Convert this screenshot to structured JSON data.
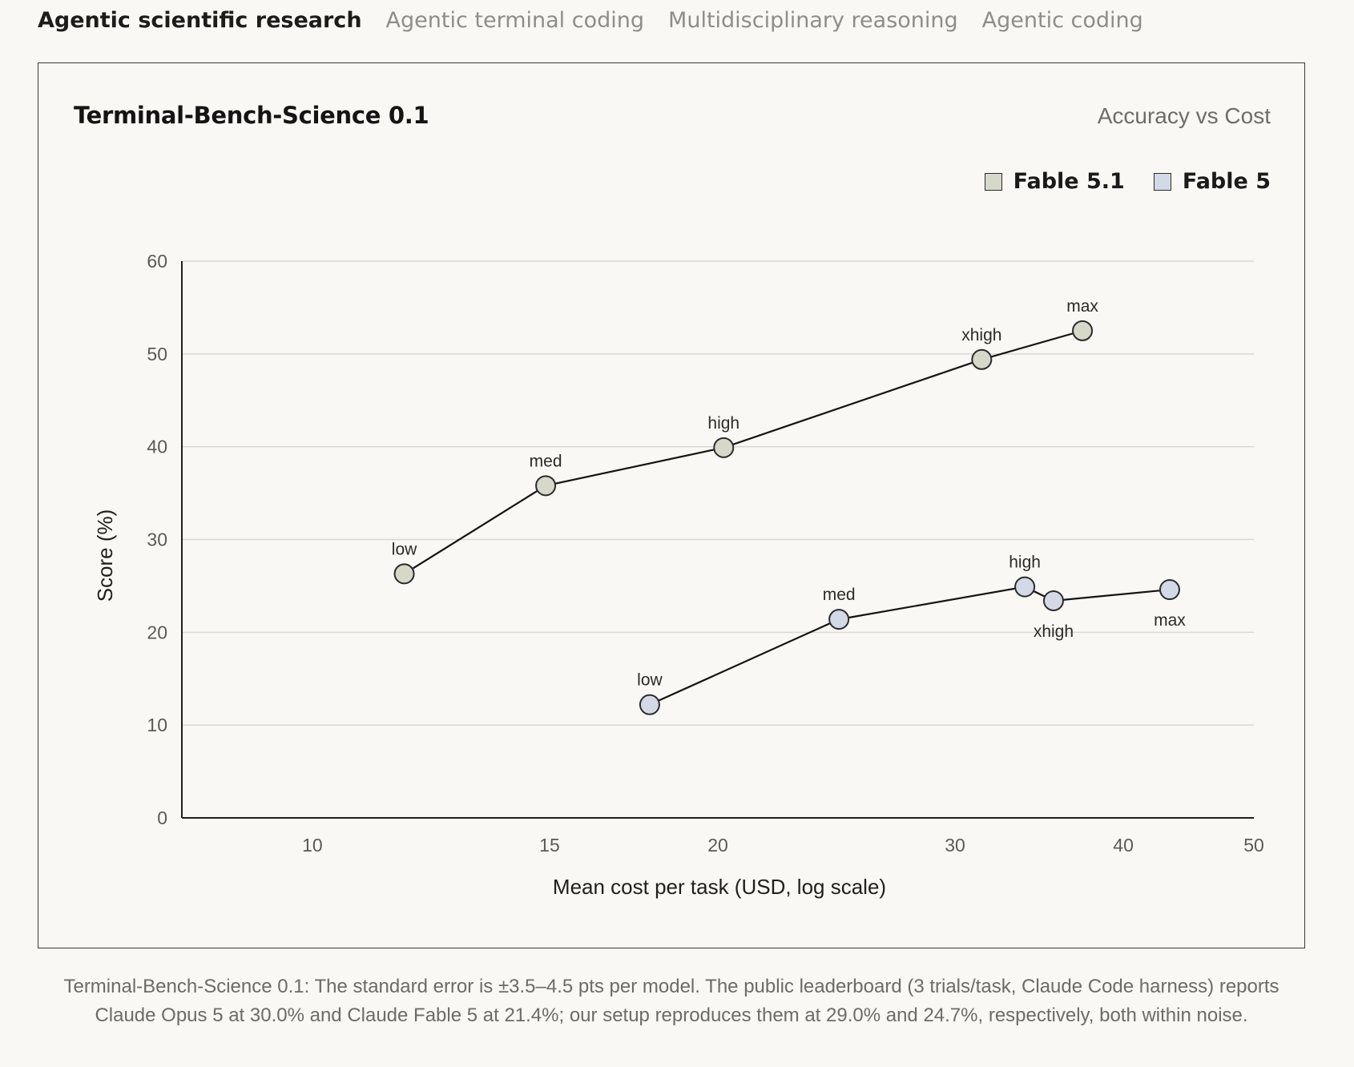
{
  "tabs": [
    {
      "label": "Agentic scientific research",
      "active": true
    },
    {
      "label": "Agentic terminal coding",
      "active": false
    },
    {
      "label": "Multidisciplinary reasoning",
      "active": false
    },
    {
      "label": "Agentic coding",
      "active": false
    }
  ],
  "caption": "Terminal-Bench-Science 0.1: The standard error is ±3.5–4.5 pts per model. The public leaderboard (3 trials/task, Claude Code harness) reports Claude Opus 5 at 30.0% and Claude Fable 5 at 21.4%; our setup reproduces them at 29.0% and 24.7%, respectively, both within noise.",
  "chart_data": {
    "type": "line",
    "title": "Terminal-Bench-Science 0.1",
    "subtitle": "Accuracy vs Cost",
    "xlabel": "Mean cost per task (USD, log scale)",
    "ylabel": "Score (%)",
    "xscale": "log",
    "xlim": [
      8,
      50
    ],
    "ylim": [
      0,
      60
    ],
    "xticks": [
      10,
      15,
      20,
      30,
      40,
      50
    ],
    "yticks": [
      0,
      10,
      20,
      30,
      40,
      50,
      60
    ],
    "grid": "horizontal",
    "legend_position": "top-right",
    "series": [
      {
        "name": "Fable 5.1",
        "color": "#d6d9c9",
        "points": [
          {
            "label": "low",
            "x": 11.7,
            "y": 26.3,
            "label_pos": "above"
          },
          {
            "label": "med",
            "x": 14.9,
            "y": 35.8,
            "label_pos": "above"
          },
          {
            "label": "high",
            "x": 20.2,
            "y": 39.9,
            "label_pos": "above"
          },
          {
            "label": "xhigh",
            "x": 31.4,
            "y": 49.4,
            "label_pos": "above"
          },
          {
            "label": "max",
            "x": 37.3,
            "y": 52.5,
            "label_pos": "above"
          }
        ]
      },
      {
        "name": "Fable 5",
        "color": "#d4d9e6",
        "points": [
          {
            "label": "low",
            "x": 17.8,
            "y": 12.2,
            "label_pos": "above"
          },
          {
            "label": "med",
            "x": 24.6,
            "y": 21.4,
            "label_pos": "above"
          },
          {
            "label": "high",
            "x": 33.8,
            "y": 24.9,
            "label_pos": "above"
          },
          {
            "label": "xhigh",
            "x": 35.5,
            "y": 23.4,
            "label_pos": "below"
          },
          {
            "label": "max",
            "x": 43.3,
            "y": 24.6,
            "label_pos": "below"
          }
        ]
      }
    ]
  }
}
